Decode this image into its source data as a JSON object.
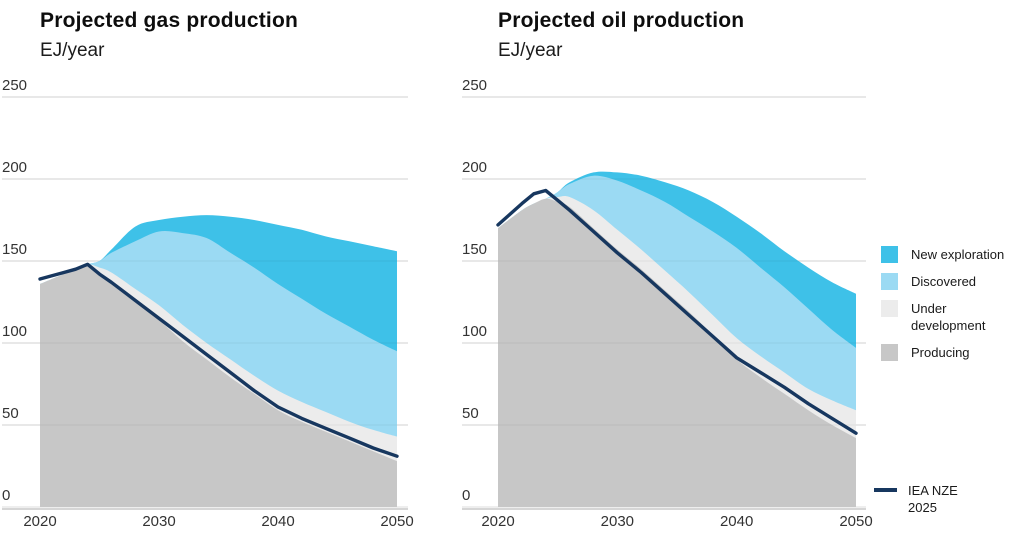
{
  "page": {
    "background": "#ffffff"
  },
  "colors": {
    "new_exploration": "#3ec1e8",
    "discovered": "#9bdaf3",
    "under_development": "#ececec",
    "producing": "#c7c7c7",
    "nze_line": "#17375f",
    "gridline": "#dedede",
    "axis_line": "#c9c9c9"
  },
  "legend": {
    "items": [
      {
        "key": "new_exploration",
        "label": "New exploration",
        "color": "#3ec1e8"
      },
      {
        "key": "discovered",
        "label": "Discovered",
        "color": "#9bdaf3"
      },
      {
        "key": "under_development",
        "label": "Under\ndevelopment",
        "color": "#ececec"
      },
      {
        "key": "producing",
        "label": "Producing",
        "color": "#c7c7c7"
      }
    ],
    "line_item": {
      "key": "iea_nze_2025",
      "label": "IEA NZE\n2025",
      "color": "#17375f"
    }
  },
  "chart_data": [
    {
      "type": "area",
      "title": "Projected gas production",
      "subtitle": "EJ/year",
      "xlabel": "",
      "ylabel": "EJ/year",
      "xlim": [
        2020,
        2050
      ],
      "ylim": [
        0,
        250
      ],
      "x_ticks": [
        2020,
        2030,
        2040,
        2050
      ],
      "y_ticks": [
        0,
        50,
        100,
        150,
        200,
        250
      ],
      "grid": true,
      "stacking": "values_are_cumulative_stack_tops",
      "x": [
        2020,
        2022,
        2023,
        2024,
        2025,
        2026,
        2028,
        2030,
        2032,
        2034,
        2036,
        2038,
        2040,
        2042,
        2044,
        2046,
        2048,
        2050
      ],
      "series": [
        {
          "key": "producing",
          "name": "Producing",
          "color": "#c7c7c7",
          "values": [
            136,
            142,
            145,
            148,
            143,
            138,
            126,
            114,
            101,
            90,
            79,
            69,
            59,
            52,
            46,
            40,
            34,
            28
          ]
        },
        {
          "key": "under_development",
          "name": "Under development",
          "color": "#ececec",
          "values": [
            136,
            142,
            145,
            148,
            146,
            143,
            133,
            123,
            111,
            100,
            90,
            80,
            71,
            64,
            58,
            52,
            47,
            43
          ]
        },
        {
          "key": "discovered",
          "name": "Discovered",
          "color": "#9bdaf3",
          "values": [
            136,
            142,
            145,
            148,
            150,
            155,
            162,
            168,
            167,
            164,
            155,
            146,
            136,
            127,
            118,
            110,
            102,
            95
          ]
        },
        {
          "key": "new_exploration",
          "name": "New exploration",
          "color": "#3ec1e8",
          "values": [
            136,
            142,
            145,
            148,
            150,
            157,
            171,
            175,
            177,
            178,
            177,
            175,
            172,
            169,
            165,
            162,
            159,
            156
          ]
        }
      ],
      "line_series": {
        "key": "iea_nze_2025",
        "name": "IEA NZE 2025",
        "color": "#17375f",
        "values": [
          139,
          143,
          145,
          148,
          142,
          137,
          126,
          115,
          104,
          93,
          82,
          71,
          61,
          54,
          48,
          42,
          36,
          31
        ]
      }
    },
    {
      "type": "area",
      "title": "Projected oil production",
      "subtitle": "EJ/year",
      "xlabel": "",
      "ylabel": "EJ/year",
      "xlim": [
        2020,
        2050
      ],
      "ylim": [
        0,
        250
      ],
      "x_ticks": [
        2020,
        2030,
        2040,
        2050
      ],
      "y_ticks": [
        0,
        50,
        100,
        150,
        200,
        250
      ],
      "grid": true,
      "stacking": "values_are_cumulative_stack_tops",
      "x": [
        2020,
        2022,
        2023,
        2024,
        2025,
        2026,
        2028,
        2030,
        2032,
        2034,
        2036,
        2038,
        2040,
        2042,
        2044,
        2046,
        2048,
        2050
      ],
      "series": [
        {
          "key": "producing",
          "name": "Producing",
          "color": "#c7c7c7",
          "values": [
            170,
            181,
            185,
            188,
            186,
            183,
            170,
            157,
            145,
            132,
            119,
            105,
            90,
            79,
            69,
            59,
            50,
            42
          ]
        },
        {
          "key": "under_development",
          "name": "Under development",
          "color": "#ececec",
          "values": [
            170,
            181,
            185,
            188,
            189,
            189,
            181,
            169,
            157,
            144,
            131,
            117,
            103,
            92,
            82,
            72,
            65,
            59
          ]
        },
        {
          "key": "discovered",
          "name": "Discovered",
          "color": "#9bdaf3",
          "values": [
            170,
            181,
            185,
            188,
            192,
            197,
            202,
            199,
            193,
            186,
            177,
            168,
            158,
            146,
            134,
            121,
            108,
            97
          ]
        },
        {
          "key": "new_exploration",
          "name": "New exploration",
          "color": "#3ec1e8",
          "values": [
            170,
            181,
            185,
            188,
            192,
            198,
            204,
            204,
            202,
            198,
            193,
            186,
            177,
            167,
            156,
            146,
            137,
            130
          ]
        }
      ],
      "line_series": {
        "key": "iea_nze_2025",
        "name": "IEA NZE 2025",
        "color": "#17375f",
        "values": [
          172,
          185,
          191,
          193,
          187,
          181,
          168,
          155,
          143,
          130,
          117,
          104,
          91,
          82,
          73,
          63,
          54,
          45
        ]
      }
    }
  ]
}
